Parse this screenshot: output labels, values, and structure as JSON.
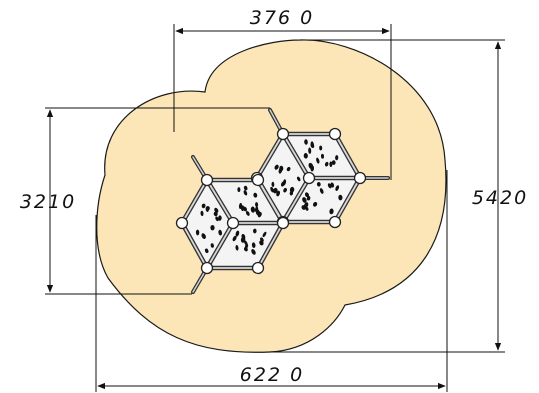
{
  "dimensions": {
    "top_width": "376 0",
    "left_height": "3210",
    "right_height": "5420",
    "bottom_width": "622 0"
  },
  "colors": {
    "safety_zone_fill": "#fce6b8",
    "outline": "#1a1a1a",
    "panel_fill": "#f4f4f4",
    "frame": "#333333",
    "pipe_highlight": "#cfcfcf"
  }
}
